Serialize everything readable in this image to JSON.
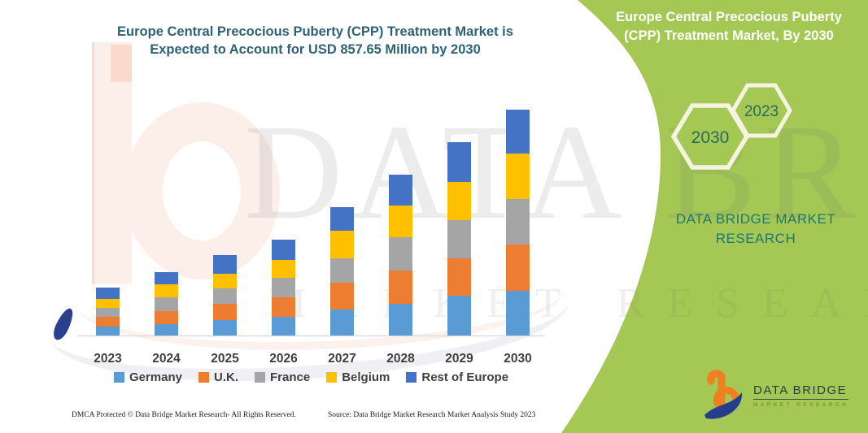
{
  "header": {
    "title_line1": "Europe Central Precocious Puberty (CPP) Treatment Market is",
    "title_line2": "Expected to Account for USD 857.65 Million by 2030"
  },
  "band": {
    "color": "#a4c853",
    "title_line1": "Europe Central Precocious Puberty",
    "title_line2": "(CPP) Treatment Market, By 2030",
    "hexagons": {
      "back_label": "2023",
      "front_label": "2030"
    },
    "brand_line1": "DATA BRIDGE MARKET",
    "brand_line2": "RESEARCH"
  },
  "logo": {
    "name": "DATA BRIDGE",
    "tagline": "MARKET RESEARCH",
    "mark": "data-bridge-b-swoosh",
    "orange": "#f0801f",
    "navy": "#243e8b"
  },
  "watermark": {
    "line1": "DATA BRIDGE",
    "line2": "MARKET RESEARCH"
  },
  "footer": {
    "left": "DMCA Protected © Data Bridge Market Research-  All Rights Reserved.",
    "right": "Source: Data Bridge Market Research  Market Analysis Study 2023"
  },
  "chart_data": {
    "type": "bar",
    "stacked": true,
    "unit": "USD Million",
    "title": "Europe Central Precocious Puberty (CPP) Treatment Market, USD Million",
    "categories": [
      "2023",
      "2024",
      "2025",
      "2026",
      "2027",
      "2028",
      "2029",
      "2030"
    ],
    "series": [
      {
        "name": "Germany",
        "color": "#5b9bd5",
        "values": [
          33,
          44,
          60,
          72,
          99,
          120,
          150,
          169
        ]
      },
      {
        "name": "U.K.",
        "color": "#ed7d31",
        "values": [
          39,
          49,
          60,
          72,
          101,
          128,
          144,
          175
        ]
      },
      {
        "name": "France",
        "color": "#a5a5a5",
        "values": [
          33,
          52,
          59,
          74,
          93,
          124,
          145,
          175
        ]
      },
      {
        "name": "Belgium",
        "color": "#ffc000",
        "values": [
          33,
          49,
          56,
          70,
          106,
          121,
          144,
          172
        ]
      },
      {
        "name": "Rest of Europe",
        "color": "#4472c4",
        "values": [
          45,
          46,
          69,
          77,
          89,
          118,
          151,
          166.65
        ]
      }
    ],
    "totals": [
      183,
      240,
      304,
      365,
      488,
      611,
      734,
      857.65
    ],
    "highlight_value_2030": 857.65,
    "y_axis_visible": false,
    "gridlines": false,
    "legend_position": "bottom"
  }
}
